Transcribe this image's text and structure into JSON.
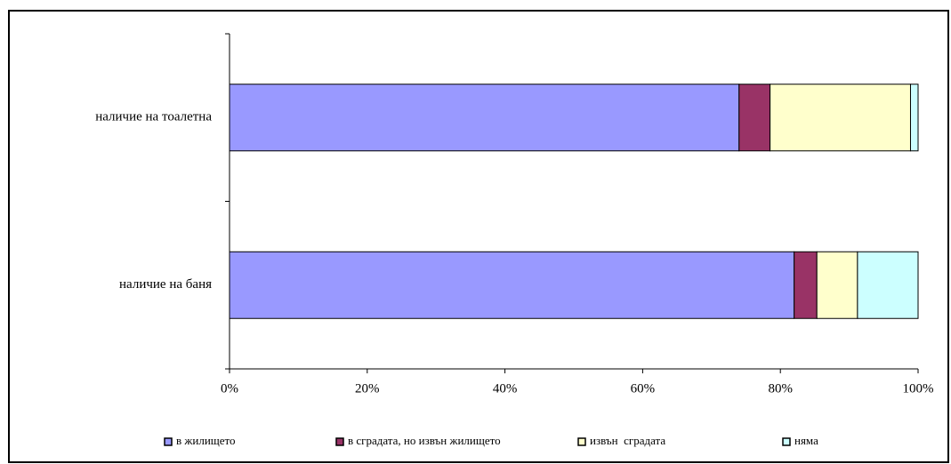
{
  "chart_data": {
    "type": "stacked-horizontal-bar",
    "categories": [
      "наличие на баня",
      "наличие на тоалетна"
    ],
    "series": [
      {
        "name": "в жилището",
        "color": "#9999ff",
        "values": [
          82,
          74
        ]
      },
      {
        "name": "в сградата, но извън жилището",
        "color": "#993366",
        "values": [
          3.3,
          4.5
        ]
      },
      {
        "name": "извън  сградата",
        "color": "#ffffcc",
        "values": [
          5.9,
          20.4
        ]
      },
      {
        "name": "няма",
        "color": "#ccffff",
        "values": [
          8.8,
          1.1
        ]
      }
    ],
    "xlim": [
      0,
      100
    ],
    "xticks": [
      {
        "value": 0,
        "label": "0%"
      },
      {
        "value": 20,
        "label": "20%"
      },
      {
        "value": 40,
        "label": "40%"
      },
      {
        "value": 60,
        "label": "60%"
      },
      {
        "value": 80,
        "label": "80%"
      },
      {
        "value": 100,
        "label": "100%"
      }
    ],
    "grid": false,
    "legend": "bottom"
  }
}
